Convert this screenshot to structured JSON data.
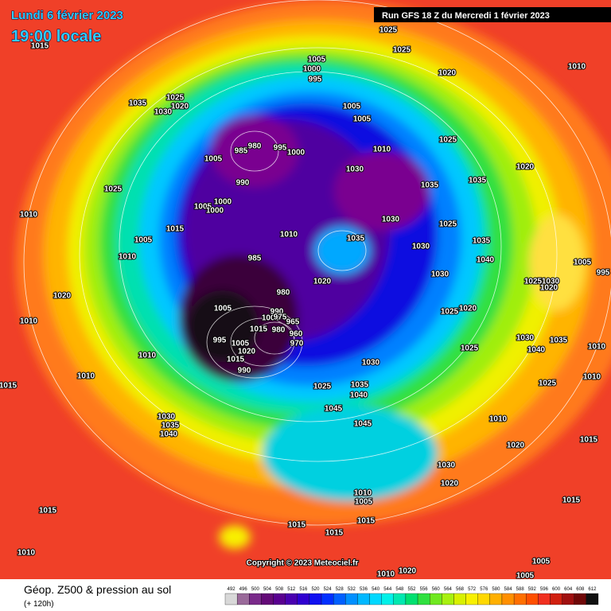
{
  "header": {
    "date": "Lundi 6 février 2023",
    "time": "19:00 locale",
    "run": "Run GFS 18 Z du Mercredi 1 février 2023"
  },
  "footer": {
    "title": "Géop. Z500 & pression au sol",
    "lead": "(+ 120h)",
    "copyright": "Copyright © 2023 Meteociel.fr"
  },
  "colorbar": {
    "values": [
      492,
      496,
      500,
      504,
      508,
      512,
      516,
      520,
      524,
      528,
      532,
      536,
      540,
      544,
      548,
      552,
      556,
      560,
      564,
      568,
      572,
      576,
      580,
      584,
      588,
      592,
      596,
      600,
      604,
      608,
      612
    ],
    "colors": [
      "#d8d8d8",
      "#9a6a9a",
      "#7a2a8a",
      "#640a78",
      "#5a0090",
      "#4a00b0",
      "#3000d0",
      "#1010f0",
      "#0030ff",
      "#0060ff",
      "#0090ff",
      "#00b8ff",
      "#00d8ff",
      "#00f0e8",
      "#00e8b0",
      "#00e070",
      "#30e040",
      "#70e820",
      "#a8f010",
      "#d8f000",
      "#f8f000",
      "#ffd800",
      "#ffb000",
      "#ff9000",
      "#ff7000",
      "#ff5000",
      "#f03020",
      "#d02010",
      "#a01010",
      "#700808",
      "#101010"
    ]
  },
  "isobar_labels": [
    1015,
    1025,
    1025,
    1010,
    1020,
    1005,
    1000,
    995,
    1035,
    1025,
    1020,
    1030,
    1005,
    1005,
    1025,
    1010,
    1020,
    985,
    980,
    995,
    1000,
    1005,
    1030,
    1035,
    1035,
    990,
    1025,
    1000,
    1005,
    1000,
    1010,
    1030,
    1025,
    1015,
    1010,
    1035,
    1035,
    1005,
    1030,
    1010,
    985,
    1040,
    1005,
    995,
    1030,
    1020,
    1025,
    1030,
    1020,
    1020,
    980,
    1005,
    1025,
    1020,
    990,
    1000,
    1010,
    965,
    975,
    1015,
    980,
    960,
    995,
    1030,
    1035,
    970,
    1005,
    1040,
    1010,
    1025,
    1020,
    1010,
    1015,
    1030,
    990,
    1010,
    1010,
    1015,
    1025,
    1035,
    1025,
    1040,
    1045,
    1030,
    1035,
    1040,
    1010,
    1045,
    1020,
    1015,
    1030,
    1020,
    1015,
    1010,
    1005,
    1015,
    1015,
    1015,
    1015,
    1010,
    1005,
    1010,
    1020,
    1005
  ]
}
